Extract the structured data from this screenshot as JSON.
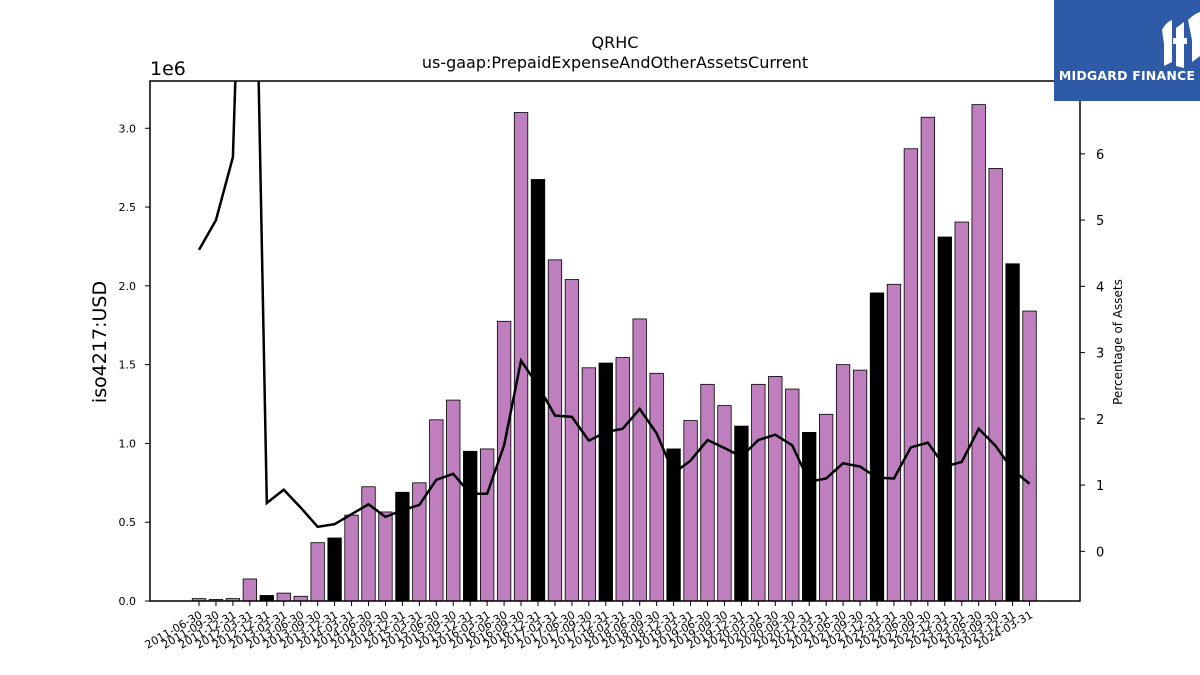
{
  "chart_data": {
    "type": "bar",
    "title": "QRHC",
    "subtitle": "us-gaap:PrepaidExpenseAndOtherAssetsCurrent",
    "ylabel": "iso4217:USD",
    "y_offset_label": "1e6",
    "y2label": "Percentage of Assets",
    "ylim": [
      0,
      3300000
    ],
    "y2lim": [
      -0.75,
      7.1
    ],
    "y_ticks": [
      0.0,
      0.5,
      1.0,
      1.5,
      2.0,
      2.5,
      3.0
    ],
    "y2_ticks": [
      0,
      1,
      2,
      3,
      4,
      5,
      6
    ],
    "grid": false,
    "bar_colors": {
      "default": "#bf7fbf",
      "q4": "#000000"
    },
    "categories": [
      "2011-06-30",
      "2011-09-30",
      "2011-12-31",
      "2012-03-31",
      "2012-12-31",
      "2013-03-31",
      "2013-06-30",
      "2013-09-30",
      "2013-12-31",
      "2014-03-31",
      "2014-06-30",
      "2014-09-30",
      "2014-12-31",
      "2015-03-31",
      "2015-06-30",
      "2015-09-30",
      "2015-12-31",
      "2016-03-31",
      "2016-06-30",
      "2016-09-30",
      "2016-12-31",
      "2017-03-31",
      "2017-06-30",
      "2017-09-30",
      "2017-12-31",
      "2018-03-31",
      "2018-06-30",
      "2018-09-30",
      "2018-12-31",
      "2019-03-31",
      "2019-06-30",
      "2019-09-30",
      "2019-12-31",
      "2020-03-31",
      "2020-06-30",
      "2020-09-30",
      "2020-12-31",
      "2021-03-31",
      "2021-06-30",
      "2021-09-30",
      "2021-12-31",
      "2022-03-31",
      "2022-06-30",
      "2022-09-30",
      "2022-12-31",
      "2023-03-31",
      "2023-06-30",
      "2023-09-30",
      "2023-12-31",
      "2024-03-31"
    ],
    "x_tick_labels": [
      "2011-06-30",
      "2011-09-30",
      "2011-12-31",
      "2012-03-31",
      "2012-12-31",
      "2013-03-31",
      "2013-06-30",
      "2013-09-30",
      "2013-12-31",
      "2014-03-31",
      "2014-06-30",
      "2014-09-30",
      "2014-12-31",
      "2015-03-31",
      "2015-06-30",
      "2015-09-30",
      "2015-12-31",
      "2016-03-31",
      "2016-06-30",
      "2016-09-30",
      "2016-12-31",
      "2017-03-31",
      "2017-06-30",
      "2017-09-30",
      "2017-12-31",
      "2018-03-31",
      "2018-06-30",
      "2018-09-30",
      "2018-12-31",
      "2019-03-31",
      "2019-06-30",
      "2019-09-30",
      "2019-12-31",
      "2020-03-31",
      "2020-06-30",
      "2020-09-30",
      "2020-12-31",
      "2021-03-31",
      "2021-06-30",
      "2021-09-30",
      "2021-12-31",
      "2022-03-31",
      "2022-06-30",
      "2022-09-30",
      "2022-12-31",
      "2023-03-31",
      "2023-06-30",
      "2023-09-30",
      "2023-12-31",
      "2024-03-31"
    ],
    "values": [
      15000,
      10000,
      15000,
      140000,
      35000,
      50000,
      30000,
      370000,
      400000,
      545000,
      725000,
      565000,
      690000,
      750000,
      1150000,
      1275000,
      950000,
      965000,
      1775000,
      3100000,
      2675000,
      2165000,
      2040000,
      1480000,
      1510000,
      1545000,
      1790000,
      1445000,
      965000,
      1145000,
      1375000,
      1240000,
      1110000,
      1375000,
      1425000,
      1345000,
      1070000,
      1185000,
      1500000,
      1465000,
      1955000,
      2010000,
      2870000,
      3070000,
      2310000,
      2405000,
      3150000,
      2745000,
      2140000,
      1840000
    ],
    "q4_flags": [
      false,
      false,
      false,
      false,
      true,
      false,
      false,
      false,
      true,
      false,
      false,
      false,
      true,
      false,
      false,
      false,
      true,
      false,
      false,
      false,
      true,
      false,
      false,
      false,
      true,
      false,
      false,
      false,
      true,
      false,
      false,
      false,
      true,
      false,
      false,
      false,
      true,
      false,
      false,
      false,
      true,
      false,
      false,
      false,
      true,
      false,
      false,
      false,
      true,
      false
    ],
    "series": [
      {
        "values": [
          4.55,
          5.0,
          5.95,
          14.0,
          0.73,
          0.93,
          0.66,
          0.37,
          0.41,
          0.56,
          0.71,
          0.52,
          0.62,
          0.7,
          1.08,
          1.17,
          0.87,
          0.87,
          1.6,
          2.88,
          2.5,
          2.05,
          2.03,
          1.67,
          1.8,
          1.85,
          2.15,
          1.78,
          1.18,
          1.37,
          1.68,
          1.56,
          1.43,
          1.68,
          1.76,
          1.6,
          1.05,
          1.1,
          1.33,
          1.28,
          1.11,
          1.1,
          1.57,
          1.64,
          1.28,
          1.35,
          1.85,
          1.59,
          1.23,
          1.02
        ]
      }
    ]
  },
  "logo": {
    "text": "MIDGARD FINANCE"
  }
}
